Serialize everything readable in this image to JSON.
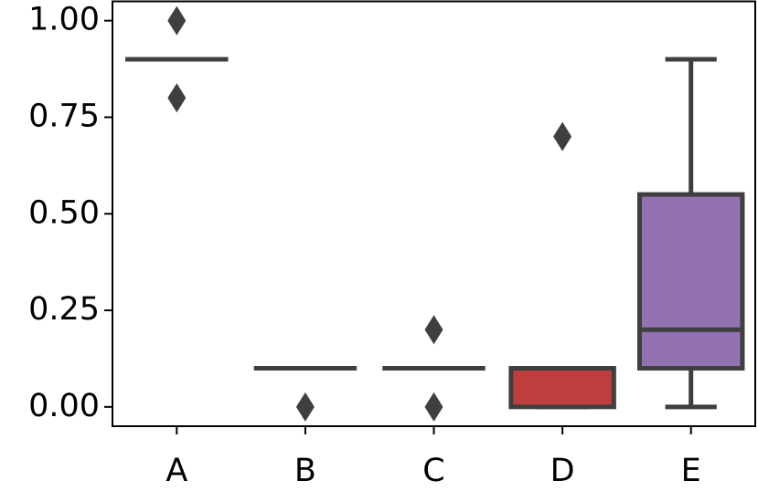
{
  "chart_data": {
    "type": "box",
    "categories": [
      "A",
      "B",
      "C",
      "D",
      "E"
    ],
    "colors": [
      "#3274a1",
      "#e1812c",
      "#3a923a",
      "#c03d3e",
      "#9372b2"
    ],
    "boxes": [
      {
        "q1": 0.9,
        "median": 0.9,
        "q3": 0.9,
        "whislo": 0.9,
        "whishi": 0.9,
        "fliers": [
          1.0,
          0.8
        ]
      },
      {
        "q1": 0.1,
        "median": 0.1,
        "q3": 0.1,
        "whislo": 0.1,
        "whishi": 0.1,
        "fliers": [
          0
        ]
      },
      {
        "q1": 0.1,
        "median": 0.1,
        "q3": 0.1,
        "whislo": 0.1,
        "whishi": 0.1,
        "fliers": [
          0.2,
          0
        ]
      },
      {
        "q1": 0,
        "median": 0.1,
        "q3": 0.1,
        "whislo": 0,
        "whishi": 0.1,
        "fliers": [
          0.7
        ]
      },
      {
        "q1": 0.1,
        "median": 0.2,
        "q3": 0.55,
        "whislo": 0,
        "whishi": 0.9,
        "fliers": []
      }
    ],
    "ylim": [
      -0.05,
      1.05
    ],
    "yticks": [
      {
        "value": 0,
        "label": "0.00"
      },
      {
        "value": 0.25,
        "label": "0.25"
      },
      {
        "value": 0.5,
        "label": "0.50"
      },
      {
        "value": 0.75,
        "label": "0.75"
      },
      {
        "value": 1,
        "label": "1.00"
      }
    ]
  }
}
